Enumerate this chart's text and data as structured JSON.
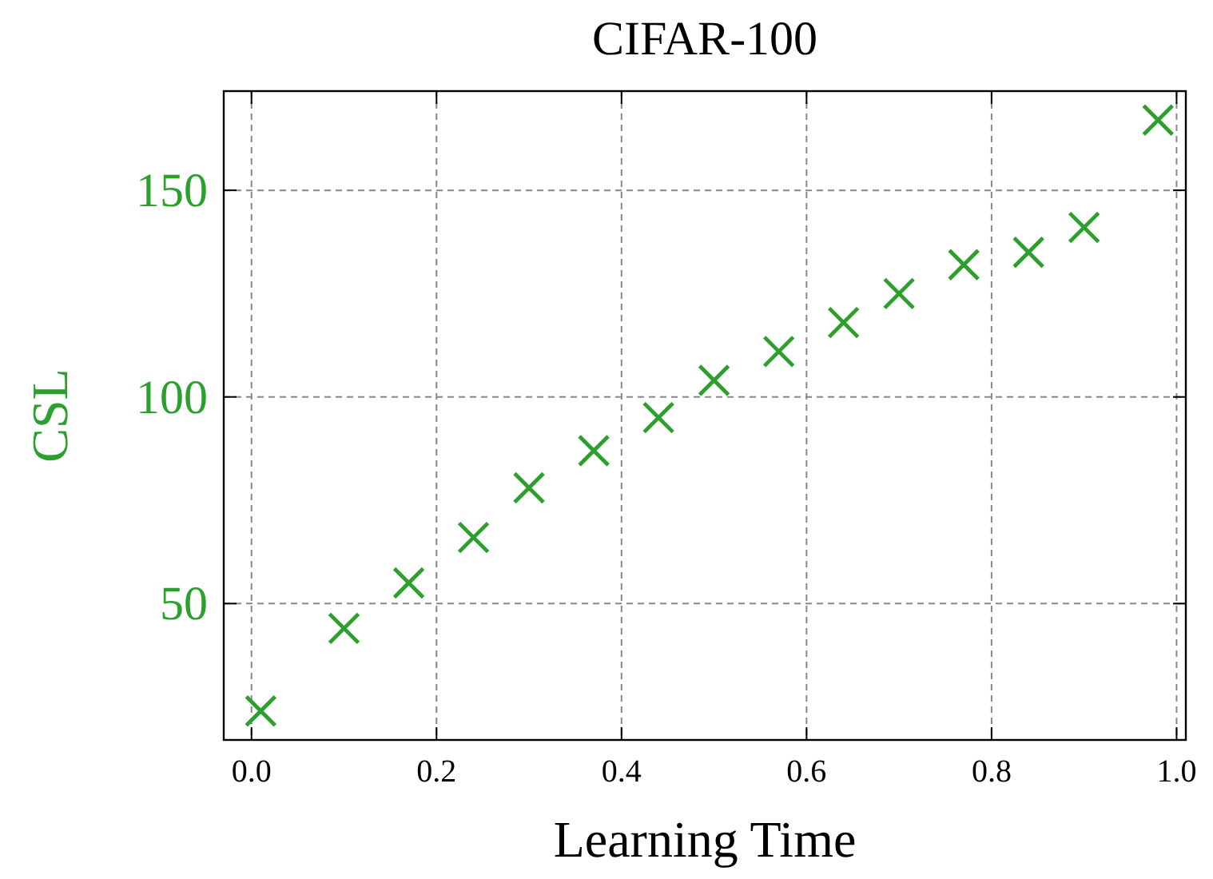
{
  "chart_data": {
    "type": "scatter",
    "title": "CIFAR-100",
    "xlabel": "Learning Time",
    "ylabel": "CSL",
    "x": [
      0.01,
      0.1,
      0.17,
      0.24,
      0.3,
      0.37,
      0.44,
      0.5,
      0.57,
      0.64,
      0.7,
      0.77,
      0.84,
      0.9,
      0.98
    ],
    "series": [
      {
        "color": "#2ca02c",
        "values": [
          24,
          44,
          55,
          66,
          78,
          87,
          95,
          104,
          111,
          118,
          125,
          132,
          135,
          141,
          167
        ]
      }
    ],
    "marker": "cross",
    "grid": true,
    "xlim": [
      -0.03,
      1.01
    ],
    "xticks": [
      {
        "value": 0,
        "label": "0.0"
      },
      0.2,
      0.4,
      0.6,
      0.8,
      {
        "value": 1,
        "label": "1.0"
      }
    ],
    "ylim": [
      17,
      174
    ],
    "yticks": [
      50,
      100,
      150
    ]
  }
}
